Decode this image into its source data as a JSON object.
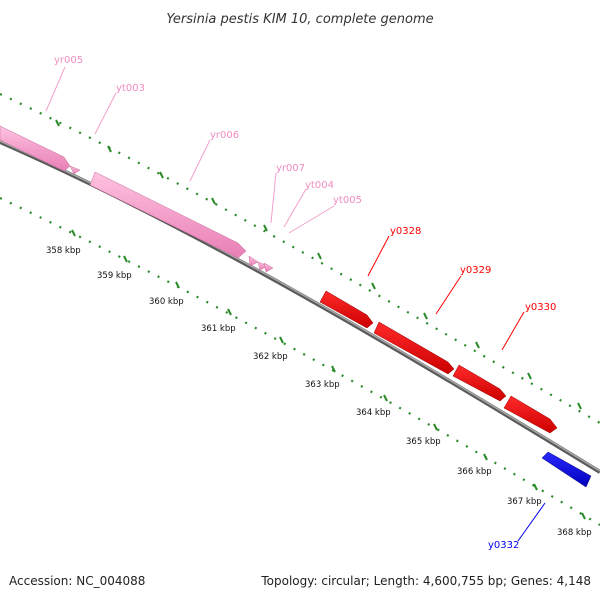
{
  "title": "Yersinia pestis KIM 10, complete genome",
  "footer": {
    "accession": "Accession: NC_004088",
    "summary": "Topology: circular; Length: 4,600,755 bp; Genes: 4,148"
  },
  "ticks": [
    {
      "label": "358 kbp"
    },
    {
      "label": "359 kbp"
    },
    {
      "label": "360 kbp"
    },
    {
      "label": "361 kbp"
    },
    {
      "label": "362 kbp"
    },
    {
      "label": "363 kbp"
    },
    {
      "label": "364 kbp"
    },
    {
      "label": "365 kbp"
    },
    {
      "label": "366 kbp"
    },
    {
      "label": "367 kbp"
    },
    {
      "label": "368 kbp"
    }
  ],
  "colors": {
    "rna_gene": "#ff99cc",
    "rna_label": "#f08cc0",
    "forward_gene": "#ff0000",
    "reverse_gene": "#0000ee",
    "backbone": "#808080",
    "tick_marks": "#2a8a2a"
  },
  "genes": [
    {
      "label": "yr005",
      "color": "#ff99cc"
    },
    {
      "label": "yt003",
      "color": "#ff99cc"
    },
    {
      "label": "yr006",
      "color": "#ff99cc"
    },
    {
      "label": "yr007",
      "color": "#ff99cc"
    },
    {
      "label": "yt004",
      "color": "#ff99cc"
    },
    {
      "label": "yt005",
      "color": "#ff99cc"
    },
    {
      "label": "y0328",
      "color": "#ff0000"
    },
    {
      "label": "y0329",
      "color": "#ff0000"
    },
    {
      "label": "y0330",
      "color": "#ff0000"
    },
    {
      "label": "y0332",
      "color": "#0000ee"
    }
  ]
}
